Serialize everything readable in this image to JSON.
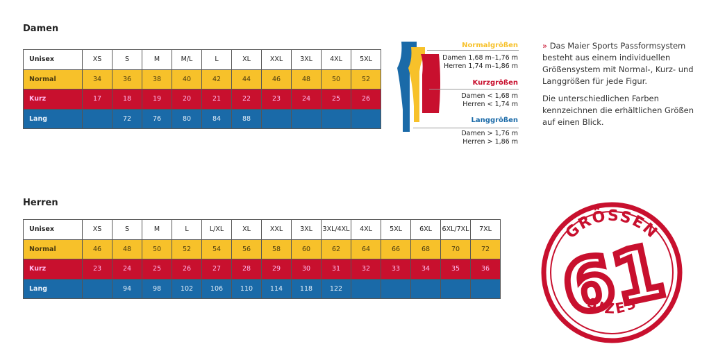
{
  "damen": {
    "title": "Damen",
    "header": [
      "Unisex",
      "XS",
      "S",
      "M",
      "M/L",
      "L",
      "XL",
      "XXL",
      "3XL",
      "4XL",
      "5XL"
    ],
    "rows": [
      {
        "label": "Normal",
        "values": [
          "34",
          "36",
          "38",
          "40",
          "42",
          "44",
          "46",
          "48",
          "50",
          "52"
        ]
      },
      {
        "label": "Kurz",
        "values": [
          "17",
          "18",
          "19",
          "20",
          "21",
          "22",
          "23",
          "24",
          "25",
          "26"
        ]
      },
      {
        "label": "Lang",
        "values": [
          "",
          "72",
          "76",
          "80",
          "84",
          "88",
          "",
          "",
          "",
          ""
        ]
      }
    ]
  },
  "herren": {
    "title": "Herren",
    "header": [
      "Unisex",
      "XS",
      "S",
      "M",
      "L",
      "L/XL",
      "XL",
      "XXL",
      "3XL",
      "3XL/4XL",
      "4XL",
      "5XL",
      "6XL",
      "6XL/7XL",
      "7XL"
    ],
    "rows": [
      {
        "label": "Normal",
        "values": [
          "46",
          "48",
          "50",
          "52",
          "54",
          "56",
          "58",
          "60",
          "62",
          "64",
          "66",
          "68",
          "70",
          "72"
        ]
      },
      {
        "label": "Kurz",
        "values": [
          "23",
          "24",
          "25",
          "26",
          "27",
          "28",
          "29",
          "30",
          "31",
          "32",
          "33",
          "34",
          "35",
          "36"
        ]
      },
      {
        "label": "Lang",
        "values": [
          "",
          "94",
          "98",
          "102",
          "106",
          "110",
          "114",
          "118",
          "122",
          "",
          "",
          "",
          "",
          ""
        ]
      }
    ]
  },
  "legend": [
    {
      "title": "Normalgrößen",
      "color": "#f7c12a",
      "lines": [
        "Damen 1,68 m–1,76 m",
        "Herren 1,74 m–1,86 m"
      ]
    },
    {
      "title": "Kurzgrößen",
      "color": "#c8102e",
      "lines": [
        "Damen < 1,68 m",
        "Herren < 1,74 m"
      ]
    },
    {
      "title": "Langgrößen",
      "color": "#1a6aa8",
      "lines": [
        "Damen > 1,76 m",
        "Herren > 1,86 m"
      ]
    }
  ],
  "description": {
    "marker": "»",
    "p1": "Das Maier Sports Passformsystem besteht aus einem individuellen Größensystem mit Normal-, Kurz- und Langgrößen für jede Figur.",
    "p2": "Die unterschiedlichen Farben kennzeichnen die erhältlichen Größen auf einen Blick."
  },
  "badge": {
    "top": "GRÖSSEN",
    "number": "61",
    "bottom": "SIZES",
    "color": "#c8102e"
  }
}
